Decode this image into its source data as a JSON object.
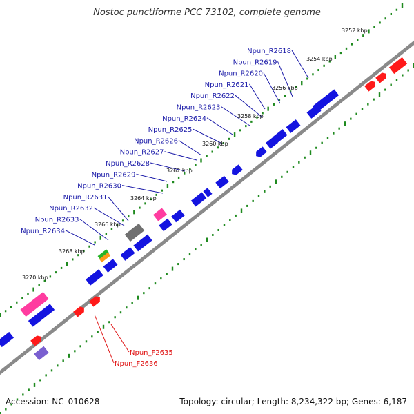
{
  "title": "Nostoc punctiforme PCC 73102, complete genome",
  "footer": {
    "accession": "Accession: NC_010628",
    "summary": "Topology: circular; Length: 8,234,322 bp; Genes: 6,187"
  },
  "colors": {
    "backbone": "#8a8a8a",
    "tick": "#1f8a1f",
    "reverse_label": "#1a1aa8",
    "forward_label": "#e01515",
    "cds": "#1414e0",
    "rna": "#ff3ca0",
    "pseudo": "#707070",
    "trna": "#28b428",
    "misc": "#ff9a1a",
    "repeat": "#7a5fd0",
    "forward_cds": "#ff1a1a"
  },
  "scale_labels": [
    "3252 kbp",
    "3254 kbp",
    "3256 kbp",
    "3258 kbp",
    "3260 kbp",
    "3262 kbp",
    "3264 kbp",
    "3266 kbp",
    "3268 kbp",
    "3270 kbp"
  ],
  "reverse_genes": [
    "Npun_R2618",
    "Npun_R2619",
    "Npun_R2620",
    "Npun_R2621",
    "Npun_R2622",
    "Npun_R2623",
    "Npun_R2624",
    "Npun_R2625",
    "Npun_R2626",
    "Npun_R2627",
    "Npun_R2628",
    "Npun_R2629",
    "Npun_R2630",
    "Npun_R2631",
    "Npun_R2632",
    "Npun_R2633",
    "Npun_R2634"
  ],
  "forward_genes": [
    "Npun_F2635",
    "Npun_F2636"
  ]
}
